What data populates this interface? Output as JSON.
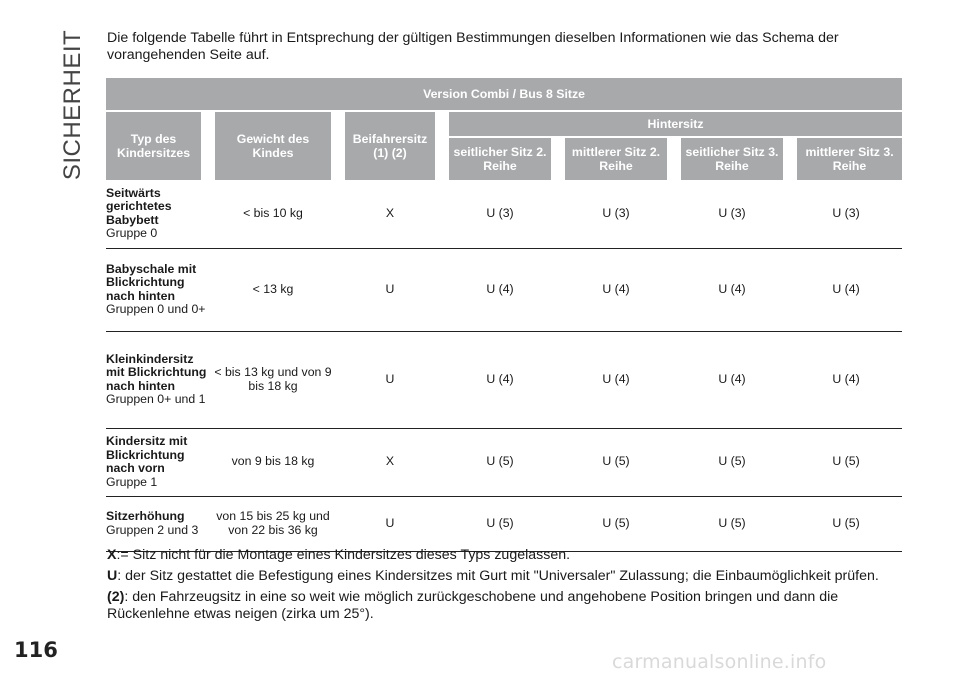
{
  "side_title": "SICHERHEIT",
  "intro_text": "Die folgende Tabelle führt in Entsprechung der gültigen Bestimmungen dieselben Informationen wie das Schema der vorangehenden Seite auf.",
  "table": {
    "version_header": "Version Combi / Bus 8 Sitze",
    "col_type": "Typ des Kindersitzes",
    "col_weight": "Gewicht des Kindes",
    "col_passenger": "Beifahrersitz (1) (2)",
    "col_rear": "Hintersitz",
    "rear_cols": [
      "seitlicher Sitz 2. Reihe",
      "mittlerer Sitz 2. Reihe",
      "seitlicher Sitz 3. Reihe",
      "mittlerer Sitz 3. Reihe"
    ],
    "rows": [
      {
        "type_bold": "Seitwärts gerichtetes Babybett",
        "type_group": "Gruppe 0",
        "weight": "< bis 10 kg",
        "passenger": "X",
        "r1": "U (3)",
        "r2": "U (3)",
        "r3": "U (3)",
        "r4": "U (3)"
      },
      {
        "type_bold": "Babyschale mit Blickrichtung nach hinten",
        "type_group": "Gruppen 0 und 0+",
        "weight": "< 13 kg",
        "passenger": "U",
        "r1": "U (4)",
        "r2": "U (4)",
        "r3": "U (4)",
        "r4": "U (4)"
      },
      {
        "type_bold": "Kleinkindersitz mit Blickrichtung nach hinten",
        "type_group": "Gruppen 0+ und 1",
        "weight": "< bis 13 kg und von 9 bis 18 kg",
        "passenger": "U",
        "r1": "U (4)",
        "r2": "U (4)",
        "r3": "U (4)",
        "r4": "U (4)"
      },
      {
        "type_bold": "Kindersitz mit Blickrichtung nach vorn",
        "type_group": "Gruppe 1",
        "weight": "von 9 bis 18 kg",
        "passenger": "X",
        "r1": "U (5)",
        "r2": "U (5)",
        "r3": "U (5)",
        "r4": "U (5)"
      },
      {
        "type_bold": "Sitzerhöhung",
        "type_group": "Gruppen 2 und 3",
        "weight": "von 15 bis 25 kg und von 22 bis 36 kg",
        "passenger": "U",
        "r1": "U (5)",
        "r2": "U (5)",
        "r3": "U (5)",
        "r4": "U (5)"
      }
    ]
  },
  "notes": [
    {
      "key": "X",
      "text": ":= Sitz nicht für die Montage eines Kindersitzes dieses Typs zugelassen."
    },
    {
      "key": "U",
      "text": ": der Sitz gestattet die Befestigung eines Kindersitzes mit Gurt mit \"Universaler\" Zulassung; die Einbaumöglichkeit prüfen."
    },
    {
      "key": "(2)",
      "text": ": den Fahrzeugsitz in eine so weit wie möglich zurückgeschobene und angehobene Position bringen und dann die Rückenlehne etwas neigen (zirka um 25°)."
    }
  ],
  "page_number": "116",
  "watermark": "carmanualsonline.info"
}
